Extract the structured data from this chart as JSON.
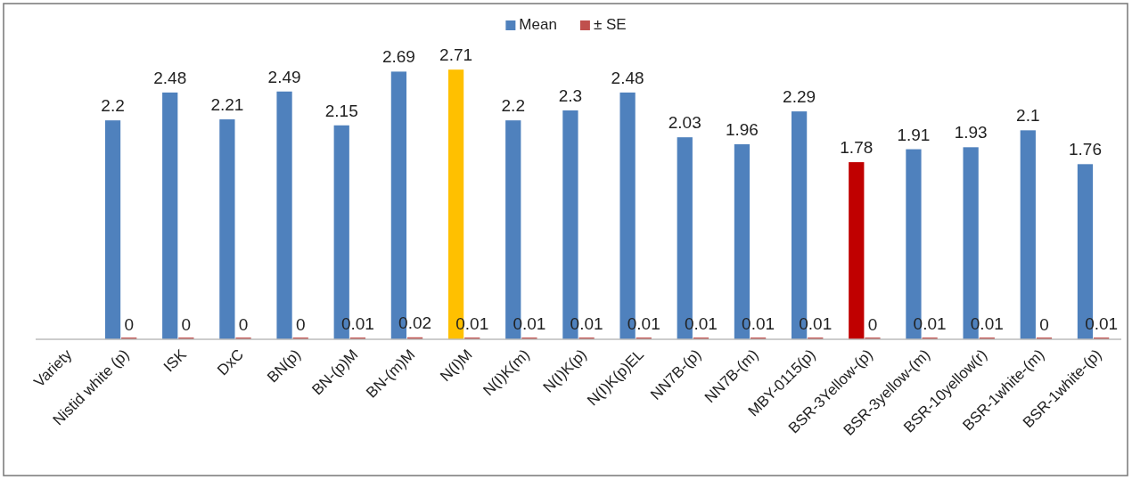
{
  "chart_data": {
    "type": "bar",
    "categories": [
      "Variety",
      "Nistid white (p)",
      "ISK",
      "DxC",
      "BN(p)",
      "BN-(p)M",
      "BN-(m)M",
      "N(I)M",
      "N(I)K(m)",
      "N(I)K(p)",
      "N(I)K(p)EL",
      "NN7B-(p)",
      "NN7B-(m)",
      "MBY-0115(p)",
      "BSR-3Yellow-(p)",
      "BSR-3yellow-(m)",
      "BSR-10yellow(r)",
      "BSR-1white-(m)",
      "BSR-1white-(p)"
    ],
    "series": [
      {
        "name": "Mean",
        "color": "#4f81bd",
        "colors": [
          null,
          "#4f81bd",
          "#4f81bd",
          "#4f81bd",
          "#4f81bd",
          "#4f81bd",
          "#4f81bd",
          "#ffc000",
          "#4f81bd",
          "#4f81bd",
          "#4f81bd",
          "#4f81bd",
          "#4f81bd",
          "#4f81bd",
          "#c00000",
          "#4f81bd",
          "#4f81bd",
          "#4f81bd",
          "#4f81bd"
        ],
        "values": [
          null,
          2.2,
          2.48,
          2.21,
          2.49,
          2.15,
          2.69,
          2.71,
          2.2,
          2.3,
          2.48,
          2.03,
          1.96,
          2.29,
          1.78,
          1.91,
          1.93,
          2.1,
          1.76
        ]
      },
      {
        "name": "± SE",
        "color": "#c0504d",
        "values": [
          null,
          0,
          0,
          0,
          0,
          0.01,
          0.02,
          0.01,
          0.01,
          0.01,
          0.01,
          0.01,
          0.01,
          0.01,
          0,
          0.01,
          0.01,
          0,
          0.01
        ]
      }
    ],
    "data_labels": true,
    "legend": "top",
    "grid": false
  }
}
